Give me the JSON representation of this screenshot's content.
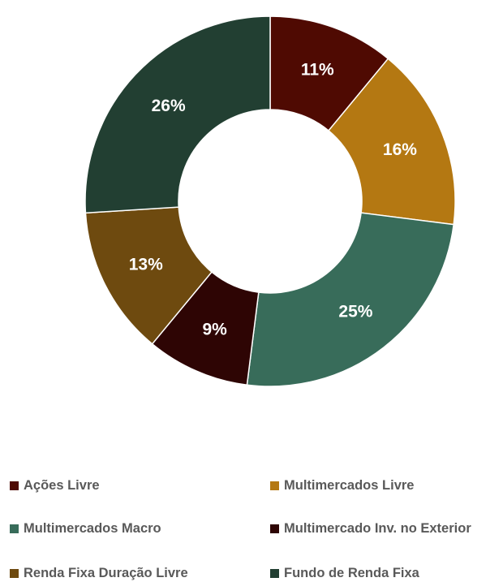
{
  "chart_data": {
    "type": "pie",
    "donut": true,
    "categories": [
      "Ações Livre",
      "Multimercados Livre",
      "Multimercados Macro",
      "Multimercado Inv. no Exterior",
      "Renda Fixa Duração Livre",
      "Fundo de Renda Fixa"
    ],
    "values": [
      11,
      16,
      25,
      9,
      13,
      26
    ],
    "labels": [
      "11%",
      "16%",
      "25%",
      "9%",
      "13%",
      "26%"
    ],
    "colors": [
      "#4f0a02",
      "#b47812",
      "#386c5a",
      "#2e0504",
      "#6e4a0f",
      "#223f32"
    ],
    "legend_position": "bottom"
  }
}
